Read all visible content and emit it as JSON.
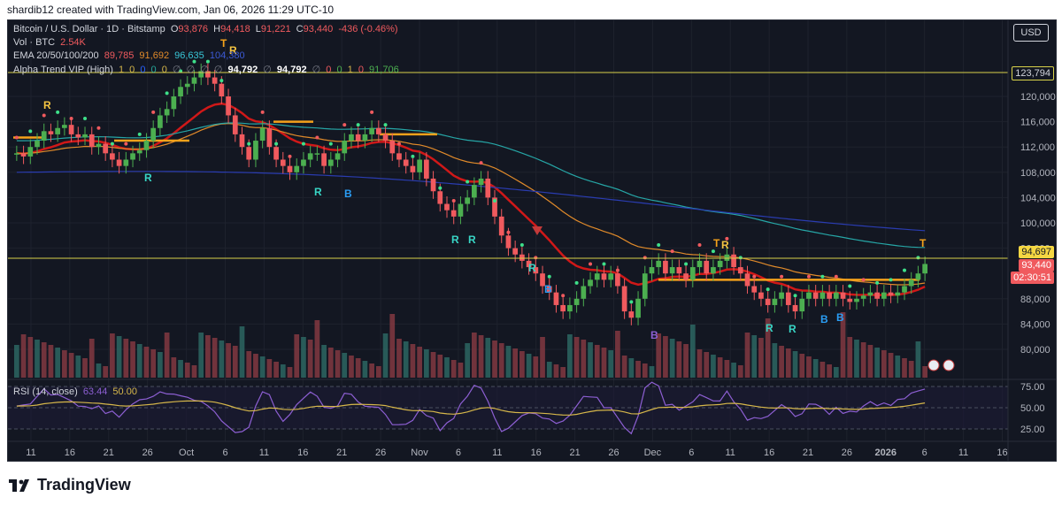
{
  "header": {
    "credit": "shardib12 created with TradingView.com, Jan 06, 2026 11:29 UTC-10"
  },
  "legend": {
    "symbol": "Bitcoin / U.S. Dollar · 1D · Bitstamp",
    "ohlc": {
      "o_label": "O",
      "o": "93,876",
      "h_label": "H",
      "h": "94,418",
      "l_label": "L",
      "l": "91,221",
      "c_label": "C",
      "c": "93,440",
      "change": "-436 (-0.46%)"
    },
    "vol_label": "Vol · BTC",
    "vol_value": "2.54K",
    "ema_label": "EMA 20/50/100/200",
    "ema20": "89,785",
    "ema50": "91,692",
    "ema100": "96,635",
    "ema200": "104,380",
    "alpha_label": "Alpha Trend VIP (High)",
    "alpha_values": [
      "1",
      "0",
      "0",
      "0",
      "0",
      "∅",
      "∅",
      "∅",
      "∅"
    ],
    "alpha_price1": "94,792",
    "alpha_sep": "∅",
    "alpha_price2": "94,792",
    "alpha_values2": [
      "∅",
      "0",
      "0",
      "1",
      "0"
    ],
    "alpha_last": "91,706"
  },
  "currency_button": "USD",
  "price_axis": {
    "labels": [
      "120,000",
      "116,000",
      "112,000",
      "108,000",
      "104,000",
      "100,000",
      "96,000",
      "88,000",
      "84,000",
      "80,000"
    ],
    "tag_resistance": "123,794",
    "tag_support": "94,697",
    "tag_current": "93,440",
    "tag_countdown": "02:30:51"
  },
  "time_axis": {
    "labels": [
      "11",
      "16",
      "21",
      "26",
      "Oct",
      "6",
      "11",
      "16",
      "21",
      "26",
      "Nov",
      "6",
      "11",
      "16",
      "21",
      "26",
      "Dec",
      "6",
      "11",
      "16",
      "21",
      "26",
      "2026",
      "6",
      "11",
      "16"
    ]
  },
  "rsi": {
    "label": "RSI (14, close)",
    "value1": "63.44",
    "value2": "50.00",
    "levels": [
      "75.00",
      "50.00",
      "25.00"
    ]
  },
  "signal_markers": {
    "R": "R",
    "B": "B",
    "T": "T"
  },
  "colors": {
    "bg": "#131722",
    "up": "#4caf50",
    "down": "#f05a5e",
    "ema20": "#d01818",
    "ema50": "#e08a2a",
    "ema100": "#26a6a6",
    "ema200": "#2a3cb0",
    "trend": "#f5a21b",
    "rsi": "#8d5fd3",
    "rsi_ma": "#d6b74a",
    "hline": "#d8d24a"
  },
  "footer": {
    "brand": "TradingView"
  }
}
